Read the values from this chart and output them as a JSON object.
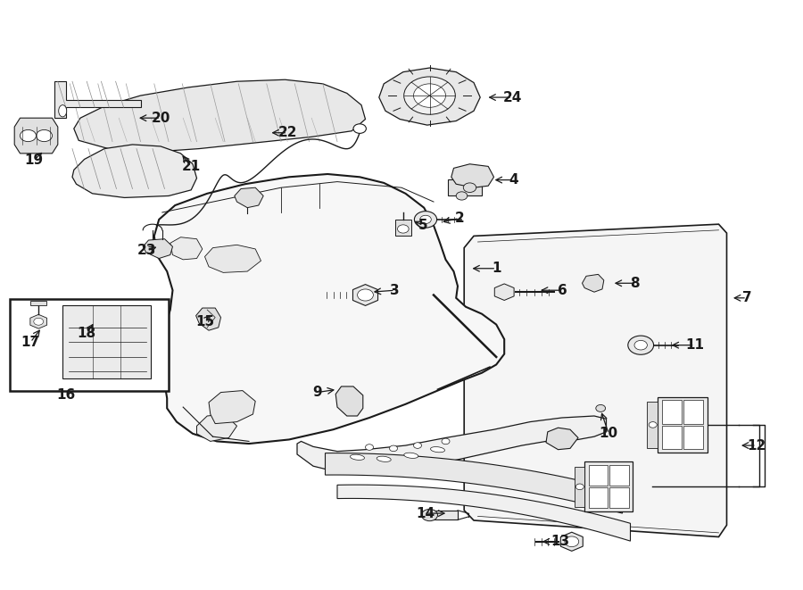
{
  "bg_color": "#ffffff",
  "line_color": "#1a1a1a",
  "figsize": [
    9.0,
    6.61
  ],
  "dpi": 100,
  "labels": {
    "1": [
      0.618,
      0.545,
      0.585,
      0.545
    ],
    "2": [
      0.572,
      0.63,
      0.548,
      0.623
    ],
    "3": [
      0.492,
      0.508,
      0.462,
      0.505
    ],
    "4": [
      0.64,
      0.695,
      0.613,
      0.695
    ],
    "5": [
      0.527,
      0.618,
      0.513,
      0.627
    ],
    "6": [
      0.7,
      0.508,
      0.67,
      0.508
    ],
    "7": [
      0.93,
      0.495,
      0.91,
      0.495
    ],
    "8": [
      0.79,
      0.52,
      0.762,
      0.52
    ],
    "9": [
      0.395,
      0.335,
      0.42,
      0.34
    ],
    "10": [
      0.758,
      0.265,
      0.748,
      0.305
    ],
    "11": [
      0.865,
      0.415,
      0.833,
      0.415
    ],
    "12": [
      0.942,
      0.245,
      0.92,
      0.245
    ],
    "13": [
      0.698,
      0.082,
      0.672,
      0.082
    ],
    "14": [
      0.53,
      0.13,
      0.558,
      0.13
    ],
    "15": [
      0.255,
      0.455,
      0.265,
      0.47
    ],
    "16": [
      0.082,
      0.33,
      null,
      null
    ],
    "17": [
      0.038,
      0.42,
      0.052,
      0.445
    ],
    "18": [
      0.108,
      0.435,
      0.118,
      0.455
    ],
    "19": [
      0.042,
      0.728,
      0.055,
      0.745
    ],
    "20": [
      0.2,
      0.8,
      0.17,
      0.8
    ],
    "21": [
      0.238,
      0.718,
      0.225,
      0.74
    ],
    "22": [
      0.358,
      0.775,
      0.335,
      0.775
    ],
    "23": [
      0.183,
      0.575,
      0.198,
      0.583
    ],
    "24": [
      0.638,
      0.835,
      0.605,
      0.835
    ]
  }
}
